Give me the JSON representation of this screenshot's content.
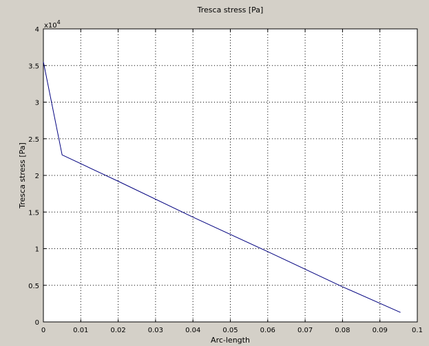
{
  "chart_data": {
    "type": "line",
    "title": "Tresca stress [Pa]",
    "xlabel": "Arc-length",
    "ylabel": "Tresca stress [Pa]",
    "y_multiplier_label": "x10",
    "y_multiplier_exponent": "4",
    "xlim": [
      0,
      0.1
    ],
    "ylim": [
      0,
      4
    ],
    "x_ticks": [
      "0",
      "0.01",
      "0.02",
      "0.03",
      "0.04",
      "0.05",
      "0.06",
      "0.07",
      "0.08",
      "0.09",
      "0.1"
    ],
    "y_ticks": [
      "0",
      "0.5",
      "1",
      "1.5",
      "2",
      "2.5",
      "3",
      "3.5",
      "4"
    ],
    "grid": true,
    "series": [
      {
        "color": "#00007f",
        "x": [
          0,
          0.005,
          0.02,
          0.04,
          0.06,
          0.08,
          0.0955
        ],
        "y": [
          3.55,
          2.28,
          1.92,
          1.43,
          0.96,
          0.48,
          0.13
        ]
      }
    ]
  }
}
